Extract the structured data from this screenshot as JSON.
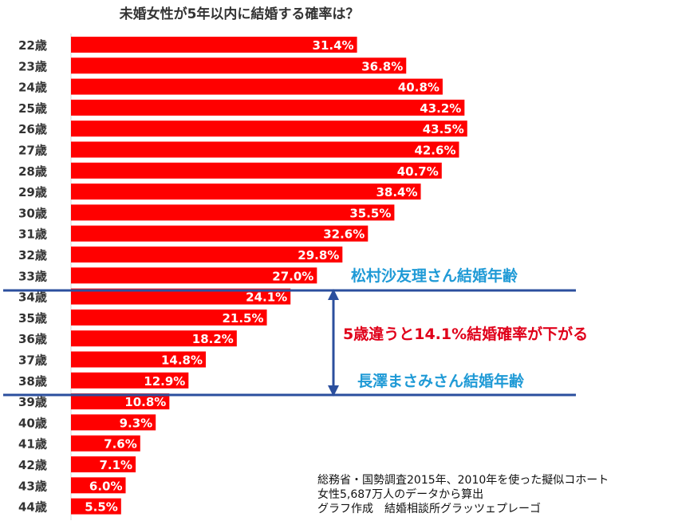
{
  "title": "未婚女性が5年以内に結婚する確率は？",
  "chart_data": {
    "type": "bar",
    "orientation": "horizontal",
    "title": "未婚女性が5年以内に結婚する確率は？",
    "categories": [
      "22歳",
      "23歳",
      "24歳",
      "25歳",
      "26歳",
      "27歳",
      "28歳",
      "29歳",
      "30歳",
      "31歳",
      "32歳",
      "33歳",
      "34歳",
      "35歳",
      "36歳",
      "37歳",
      "38歳",
      "39歳",
      "40歳",
      "41歳",
      "42歳",
      "43歳",
      "44歳"
    ],
    "values": [
      31.4,
      36.8,
      40.8,
      43.2,
      43.5,
      42.6,
      40.7,
      38.4,
      35.5,
      32.6,
      29.8,
      27.0,
      24.1,
      21.5,
      18.2,
      14.8,
      12.9,
      10.8,
      9.3,
      7.6,
      7.1,
      6.0,
      5.5
    ],
    "value_labels": [
      "31.4%",
      "36.8%",
      "40.8%",
      "43.2%",
      "43.5%",
      "42.6%",
      "40.7%",
      "38.4%",
      "35.5%",
      "32.6%",
      "29.8%",
      "27.0%",
      "24.1%",
      "21.5%",
      "18.2%",
      "14.8%",
      "12.9%",
      "10.8%",
      "9.3%",
      "7.6%",
      "7.1%",
      "6.0%",
      "5.5%"
    ],
    "bar_color": "#ff0000",
    "xlim": [
      0,
      50
    ]
  },
  "annotations": {
    "matsumura": "松村沙友理さん結婚年齢",
    "drop": "5歳違うと14.1%結婚確率が下がる",
    "nagasawa": "長澤まさみさん結婚年齢",
    "line_color": "#2b4f9e",
    "blue_text_color": "#1f9ad6",
    "red_text_color": "#e0001a"
  },
  "source": {
    "line1": "総務省・国勢調査2015年、2010年を使った擬似コホート",
    "line2": "女性5,687万人のデータから算出",
    "line3": "グラフ作成　結婚相談所グラッツェプレーゴ"
  }
}
